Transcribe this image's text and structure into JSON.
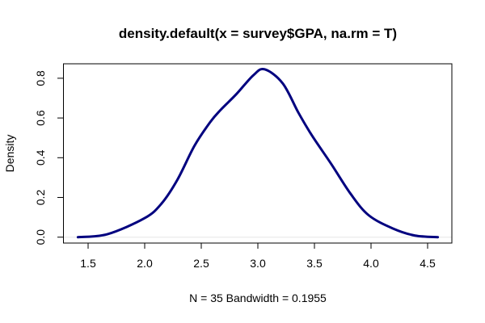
{
  "chart_data": {
    "type": "line",
    "title": "density.default(x = survey$GPA, na.rm = T)",
    "xlabel": "N = 35   Bandwidth = 0.1955",
    "ylabel": "Density",
    "xlim": [
      1.4,
      4.6
    ],
    "ylim": [
      0,
      0.85
    ],
    "x_ticks": [
      "1.5",
      "2.0",
      "2.5",
      "3.0",
      "3.5",
      "4.0",
      "4.5"
    ],
    "y_ticks": [
      "0.0",
      "0.2",
      "0.4",
      "0.6",
      "0.8"
    ],
    "grid": false,
    "legend": "none",
    "line_color": "#00007f",
    "zero_line_color": "#e6e6e6",
    "series": [
      {
        "x": [
          1.41,
          1.67,
          2.0,
          2.15,
          2.29,
          2.44,
          2.58,
          2.67,
          2.81,
          2.96,
          3.06,
          3.22,
          3.36,
          3.48,
          3.65,
          3.82,
          3.98,
          4.2,
          4.39,
          4.59
        ],
        "y": [
          0.0,
          0.015,
          0.096,
          0.17,
          0.29,
          0.46,
          0.58,
          0.64,
          0.72,
          0.815,
          0.845,
          0.774,
          0.625,
          0.51,
          0.367,
          0.218,
          0.11,
          0.042,
          0.008,
          0.0
        ]
      }
    ]
  }
}
